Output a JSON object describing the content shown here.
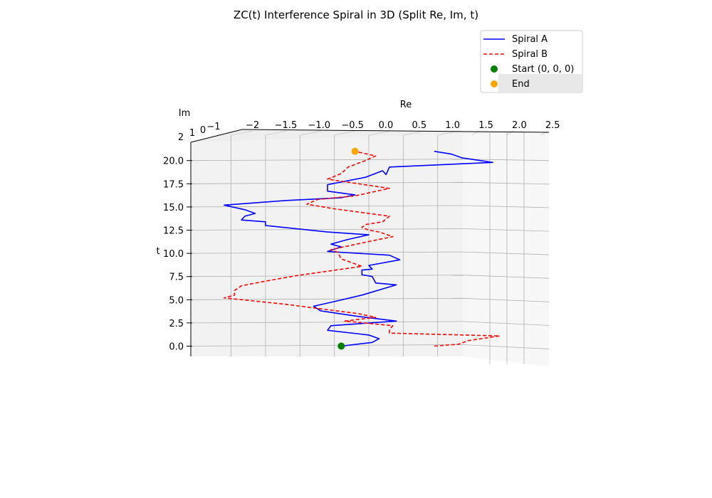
{
  "chart_data": {
    "type": "line",
    "title": "ZC(t) Interference Spiral in 3D (Split Re, Im, t)",
    "xlabel": "Re",
    "ylabel": "Im",
    "zlabel": "t",
    "xlim": [
      -2.3,
      2.5
    ],
    "zlim": [
      -1.0,
      21.0
    ],
    "grid": true,
    "legend_position": "top-right",
    "x_ticks": [
      "−2",
      "−1.5",
      "−1.0",
      "−0.5",
      "0.0",
      "0.5",
      "1.0",
      "1.5",
      "2.0",
      "2.5"
    ],
    "x_tick_values": [
      -2.0,
      -1.5,
      -1.0,
      -0.5,
      0.0,
      0.5,
      1.0,
      1.5,
      2.0,
      2.5
    ],
    "y_ticks": [
      "2",
      "1",
      "0",
      "−1"
    ],
    "z_ticks": [
      "0.0",
      "2.5",
      "5.0",
      "7.5",
      "10.0",
      "12.5",
      "15.0",
      "17.5",
      "20.0"
    ],
    "z_tick_values": [
      0.0,
      2.5,
      5.0,
      7.5,
      10.0,
      12.5,
      15.0,
      17.5,
      20.0
    ],
    "series": [
      {
        "name": "Spiral A",
        "color": "#0000ff",
        "linestyle": "solid",
        "points": [
          [
            -0.4,
            0.0
          ],
          [
            0.05,
            0.4
          ],
          [
            0.15,
            0.8
          ],
          [
            0.0,
            1.2
          ],
          [
            -0.6,
            1.7
          ],
          [
            -0.55,
            2.2
          ],
          [
            0.4,
            2.7
          ],
          [
            -0.15,
            3.2
          ],
          [
            -0.7,
            3.8
          ],
          [
            -0.8,
            4.3
          ],
          [
            -0.5,
            4.8
          ],
          [
            -0.1,
            5.5
          ],
          [
            0.4,
            6.6
          ],
          [
            0.1,
            6.8
          ],
          [
            0.05,
            7.5
          ],
          [
            -0.1,
            7.7
          ],
          [
            -0.1,
            8.2
          ],
          [
            0.05,
            8.3
          ],
          [
            0.0,
            8.7
          ],
          [
            0.45,
            9.3
          ],
          [
            0.3,
            9.8
          ],
          [
            -0.6,
            10.2
          ],
          [
            -0.4,
            10.7
          ],
          [
            -0.55,
            11.0
          ],
          [
            -0.3,
            11.5
          ],
          [
            0.0,
            12.0
          ],
          [
            -0.6,
            12.3
          ],
          [
            -1.5,
            13.0
          ],
          [
            -1.5,
            13.4
          ],
          [
            -1.85,
            13.6
          ],
          [
            -1.8,
            14.0
          ],
          [
            -1.65,
            14.3
          ],
          [
            -1.8,
            14.7
          ],
          [
            -2.1,
            15.2
          ],
          [
            -1.2,
            15.7
          ],
          [
            -0.4,
            16.0
          ],
          [
            -0.2,
            16.3
          ],
          [
            -0.6,
            16.7
          ],
          [
            -0.6,
            17.0
          ],
          [
            -0.6,
            17.4
          ],
          [
            -0.05,
            18.2
          ],
          [
            0.2,
            18.9
          ],
          [
            0.25,
            18.5
          ],
          [
            0.3,
            19.3
          ],
          [
            1.8,
            19.8
          ],
          [
            1.35,
            20.3
          ],
          [
            1.2,
            20.7
          ],
          [
            0.95,
            21.0
          ]
        ]
      },
      {
        "name": "Spiral B",
        "color": "#ff0000",
        "linestyle": "dashed",
        "points": [
          [
            0.95,
            0.0
          ],
          [
            1.3,
            0.2
          ],
          [
            1.45,
            0.6
          ],
          [
            1.9,
            1.1
          ],
          [
            0.3,
            1.4
          ],
          [
            0.3,
            1.8
          ],
          [
            0.35,
            2.2
          ],
          [
            -0.35,
            2.7
          ],
          [
            0.1,
            3.1
          ],
          [
            -0.15,
            3.5
          ],
          [
            -1.2,
            4.5
          ],
          [
            -2.1,
            5.2
          ],
          [
            -1.95,
            5.5
          ],
          [
            -1.95,
            6.0
          ],
          [
            -1.85,
            6.5
          ],
          [
            -1.5,
            7.0
          ],
          [
            -1.05,
            7.6
          ],
          [
            -0.1,
            8.6
          ],
          [
            -0.4,
            9.4
          ],
          [
            -0.45,
            10.1
          ],
          [
            -0.55,
            10.4
          ],
          [
            -0.3,
            10.8
          ],
          [
            -0.05,
            11.2
          ],
          [
            0.35,
            11.8
          ],
          [
            0.15,
            12.3
          ],
          [
            0.0,
            12.5
          ],
          [
            -0.1,
            12.8
          ],
          [
            -0.05,
            13.1
          ],
          [
            0.2,
            13.4
          ],
          [
            0.3,
            14.0
          ],
          [
            -0.5,
            14.8
          ],
          [
            -0.9,
            15.3
          ],
          [
            -0.75,
            15.8
          ],
          [
            -0.2,
            16.2
          ],
          [
            0.3,
            17.0
          ],
          [
            -0.6,
            18.0
          ],
          [
            -0.4,
            18.6
          ],
          [
            -0.3,
            19.3
          ],
          [
            -0.05,
            20.0
          ],
          [
            0.1,
            20.5
          ],
          [
            -0.2,
            21.0
          ]
        ]
      }
    ],
    "markers": [
      {
        "name": "Start (0, 0, 0)",
        "color": "#008000",
        "point": [
          -0.4,
          0.0
        ]
      },
      {
        "name": "End",
        "color": "#ffa500",
        "point": [
          -0.2,
          21.0
        ]
      }
    ]
  }
}
